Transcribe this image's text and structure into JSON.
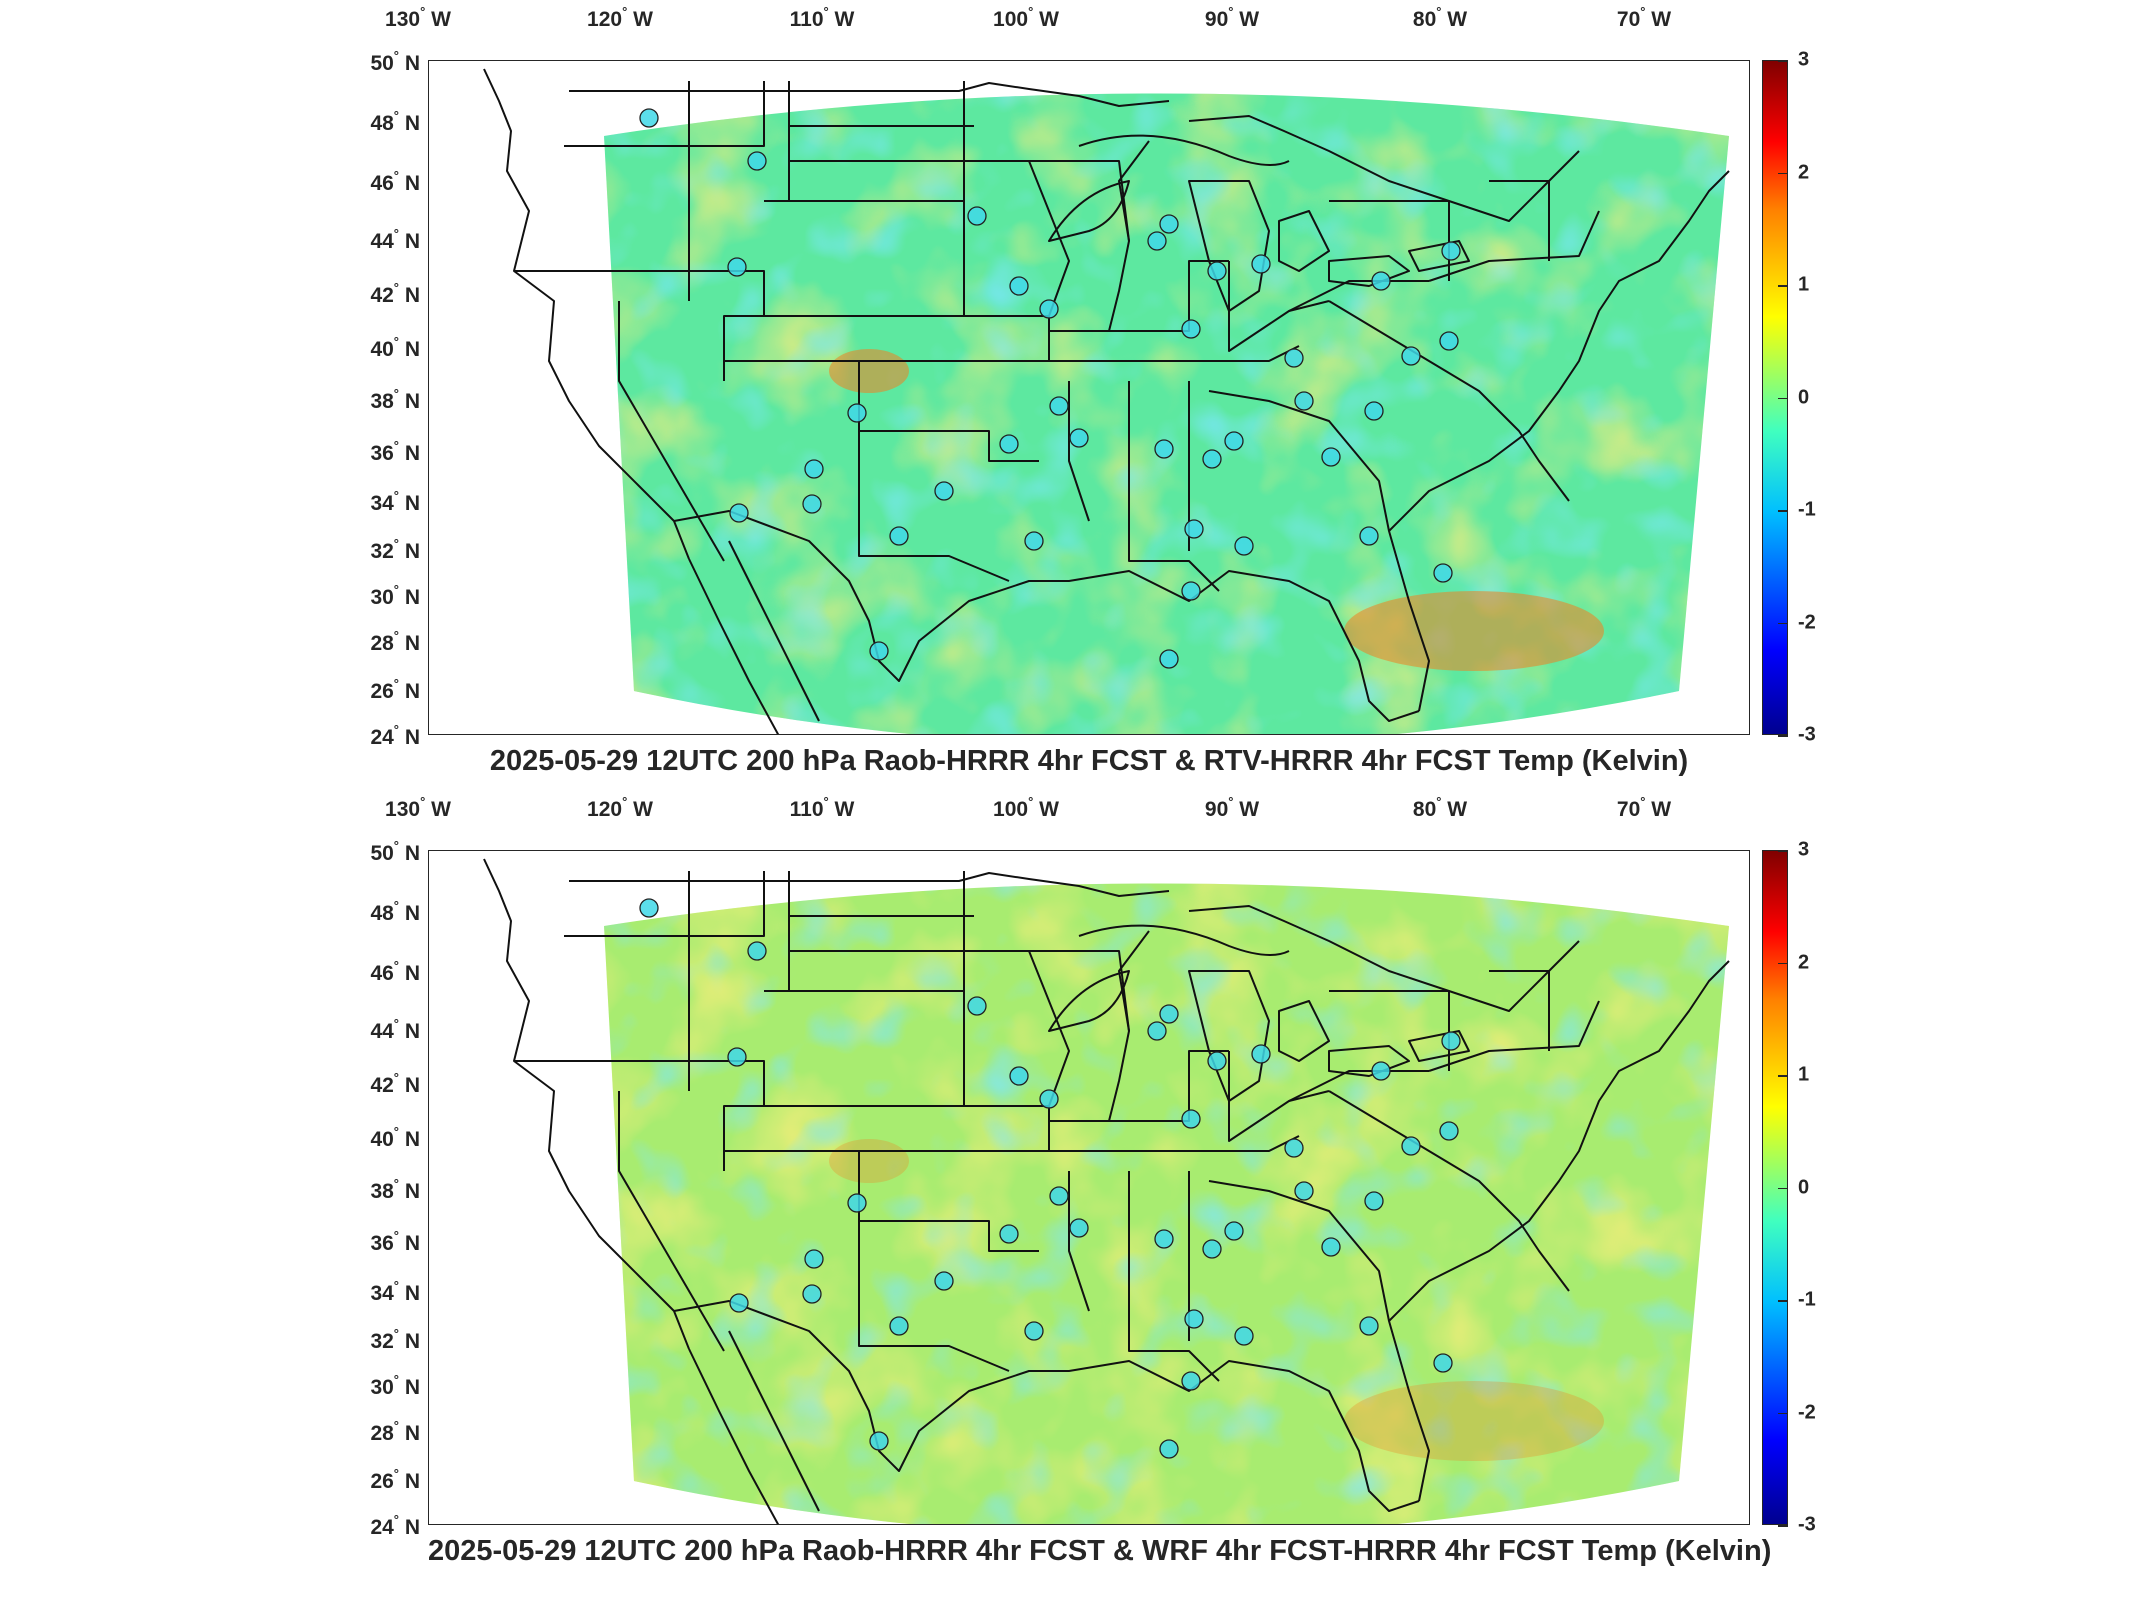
{
  "panels": [
    {
      "title": "2025-05-29 12UTC 200 hPa Raob-HRRR 4hr FCST & RTV-HRRR 4hr FCST Temp (Kelvin)",
      "palette": "warm"
    },
    {
      "title": "2025-05-29 12UTC 200 hPa Raob-HRRR 4hr FCST & WRF 4hr FCST-HRRR 4hr FCST Temp (Kelvin)",
      "palette": "mixed"
    }
  ],
  "lon_labels": [
    {
      "deg": "130",
      "hem": "W"
    },
    {
      "deg": "120",
      "hem": "W"
    },
    {
      "deg": "110",
      "hem": "W"
    },
    {
      "deg": "100",
      "hem": "W"
    },
    {
      "deg": "90",
      "hem": "W"
    },
    {
      "deg": "80",
      "hem": "W"
    },
    {
      "deg": "70",
      "hem": "W"
    }
  ],
  "lat_labels": [
    {
      "deg": "50",
      "hem": "N"
    },
    {
      "deg": "48",
      "hem": "N"
    },
    {
      "deg": "46",
      "hem": "N"
    },
    {
      "deg": "44",
      "hem": "N"
    },
    {
      "deg": "42",
      "hem": "N"
    },
    {
      "deg": "40",
      "hem": "N"
    },
    {
      "deg": "38",
      "hem": "N"
    },
    {
      "deg": "36",
      "hem": "N"
    },
    {
      "deg": "34",
      "hem": "N"
    },
    {
      "deg": "32",
      "hem": "N"
    },
    {
      "deg": "30",
      "hem": "N"
    },
    {
      "deg": "28",
      "hem": "N"
    },
    {
      "deg": "26",
      "hem": "N"
    },
    {
      "deg": "24",
      "hem": "N"
    }
  ],
  "colorbar": {
    "ticks": [
      "3",
      "2",
      "1",
      "0",
      "-1",
      "-2",
      "-3"
    ],
    "min": -3,
    "max": 3
  },
  "colors": {
    "field_base": "#5de8a0",
    "cool": "#3ad8f0",
    "warm": "#f0e040",
    "hot": "#f08020",
    "station_fill": "#40d8e8"
  }
}
